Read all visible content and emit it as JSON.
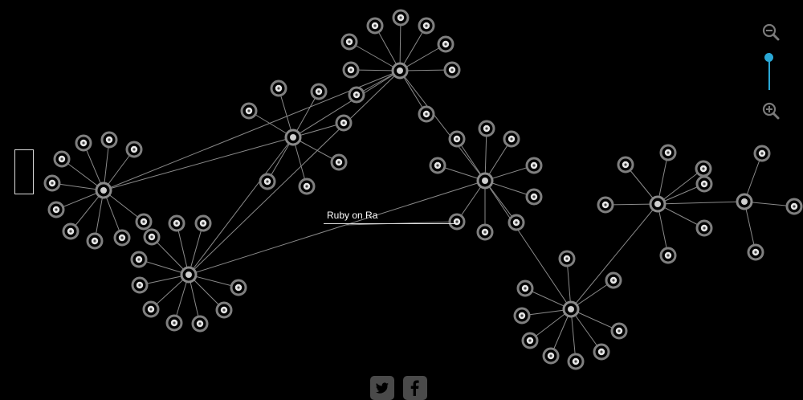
{
  "graph": {
    "tooltip_label": "Ruby on Ra",
    "hub_count": 8,
    "leaf_count": 88
  },
  "controls": {
    "zoom_out_icon": "zoom-out-icon",
    "zoom_in_icon": "zoom-in-icon",
    "zoom_level": 1.0
  },
  "social": {
    "twitter_icon": "twitter-icon",
    "facebook_icon": "facebook-icon"
  },
  "colors": {
    "background": "#000000",
    "edge": "#8a8a8a",
    "node_ring": "#7f7f7f",
    "accent": "#2aa8d6"
  }
}
